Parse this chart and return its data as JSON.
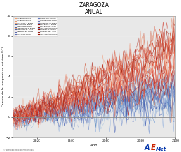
{
  "title": "ZARAGOZA",
  "subtitle": "ANUAL",
  "xlabel": "Año",
  "ylabel": "Cambio de la temperatura máxima (°C)",
  "xlim": [
    2006,
    2100
  ],
  "ylim": [
    -2,
    10
  ],
  "yticks": [
    -2,
    0,
    2,
    4,
    6,
    8,
    10
  ],
  "xticks": [
    2020,
    2040,
    2060,
    2080,
    2100
  ],
  "background_color": "#e8e8e8",
  "n_rcp85": 22,
  "n_rcp45": 20,
  "seed": 42,
  "legend_labels_col1": [
    "ACCESS1-0, RCP85",
    "ACCESS1-3, RCP85",
    "BCC-CSM1-1, RCP85",
    "CNRM-CM5, RCP85",
    "CSIRO-MK3-6-0, RCP85",
    "GFDL-ESM2M, RCP85",
    "HadGEM2-CC, RCP85",
    "HadGEM2-ES, RCP85",
    "MIROC5, RCP85",
    "MPI-ESM-LR-P, RCP85",
    "MPI-ESM-LR, RCP85",
    "MPI-ESM-MR, RCP85",
    "NorESM1-M, RCP85",
    "NorESM1-ME, RCP85",
    "IPSL-CM5A-LR, RCP85"
  ],
  "legend_labels_col2": [
    "MIROC5, RCP45",
    "MIROC-ESM-CHEM, RCP45",
    "MIROC-ESM, RCP45",
    "NorESM1-M, RCP45",
    "NorESM1-1-M, RCP45",
    "HadGEM2-ES, RCP45",
    "BCC-CSM1, RCP45",
    "CNRM-CM5, RCP45",
    "GFDL-ESM2M, RCP45",
    "HadGEM2-CC, RCP45",
    "MIROC5, RCP45",
    "IPSL-CM5A-LR, RCP45",
    "MPI-ESM-LR, RCP45",
    "MPI-ESM-LR-P, RCP45"
  ]
}
